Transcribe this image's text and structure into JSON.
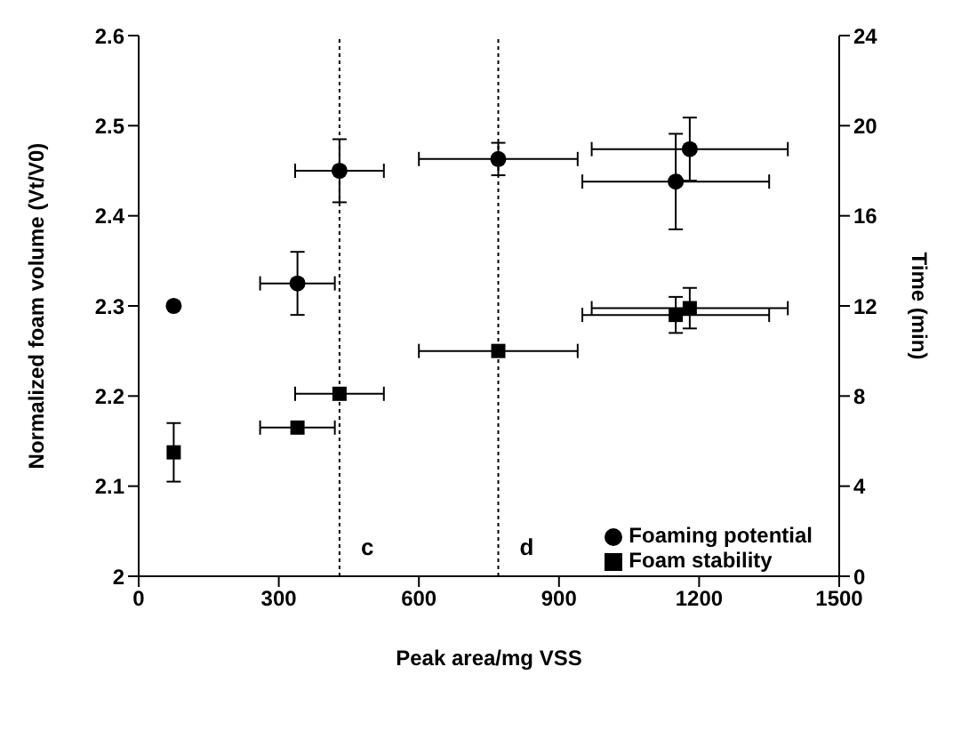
{
  "chart_data": {
    "type": "scatter",
    "xlabel": "Peak area/mg VSS",
    "ylabel": "Normalized foam volume (Vt/V0)",
    "y2label": "Time (min)",
    "xlim": [
      0,
      1500
    ],
    "xticks": [
      0,
      300,
      600,
      900,
      1200,
      1500
    ],
    "ylim": [
      2,
      2.6
    ],
    "yticks": [
      2,
      2.1,
      2.2,
      2.3,
      2.4,
      2.5,
      2.6
    ],
    "y2lim": [
      0,
      24
    ],
    "y2ticks": [
      0,
      4,
      8,
      12,
      16,
      20,
      24
    ],
    "legend": "bottom right",
    "series": [
      {
        "name": "Foaming potential",
        "color": "#000000",
        "marker": "circle",
        "x": [
          75,
          340,
          430,
          770,
          1150,
          1180
        ],
        "values": [
          2.3,
          2.325,
          2.45,
          2.463,
          2.438,
          2.474
        ],
        "errors": [
          null,
          0.035,
          0.035,
          0.018,
          0.053,
          0.035
        ],
        "xerrors": [
          null,
          80,
          95,
          170,
          200,
          210
        ]
      },
      {
        "name": "Foam stability",
        "color": "#000000",
        "marker": "square",
        "axis": "y2",
        "x": [
          75,
          340,
          430,
          770,
          1150,
          1180
        ],
        "values": [
          5.5,
          6.6,
          8.1,
          10.0,
          11.6,
          11.9
        ],
        "errors": [
          1.3,
          null,
          null,
          null,
          0.8,
          0.9
        ],
        "xerrors": [
          null,
          80,
          95,
          170,
          200,
          210
        ]
      }
    ],
    "ref_lines": [
      {
        "axis": "x",
        "value": 430,
        "label": "c",
        "line_style": "dotted"
      },
      {
        "axis": "x",
        "value": 770,
        "label": "d",
        "line_style": "dotted"
      }
    ]
  }
}
